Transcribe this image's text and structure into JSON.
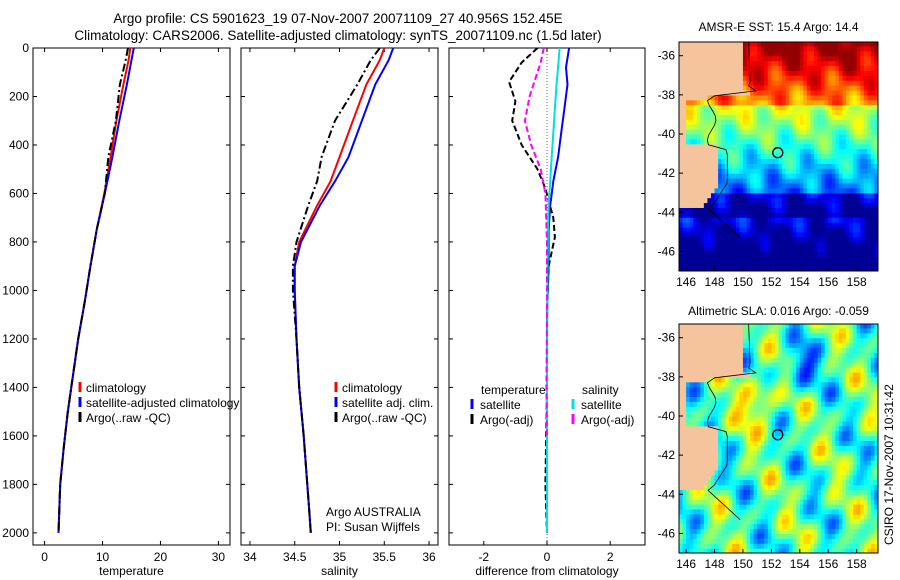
{
  "header": {
    "line1": "Argo profile: CS 5901623_19 07-Nov-2007 20071109_27 40.956S 152.45E",
    "line2": "Climatology: CARS2006. Satellite-adjusted climatology: synTS_20071109.nc (1.5d later)"
  },
  "stamp": "CSIRO 17-Nov-2007 10:31:42",
  "colors": {
    "red": "#ff0000",
    "blue": "#0000ff",
    "black": "#000000",
    "cyan": "#00e0e0",
    "magenta": "#ff00ff",
    "land": "#f6c49c"
  },
  "chart_data": [
    {
      "type": "line",
      "xlabel": "temperature",
      "ylabel": "",
      "xlim": [
        -2,
        32
      ],
      "ylim": [
        2050,
        0
      ],
      "xticks": [
        0,
        10,
        20,
        30
      ],
      "yticks": [
        0,
        200,
        400,
        600,
        800,
        1000,
        1200,
        1400,
        1600,
        1800,
        2000
      ],
      "legend": {
        "position": "lower-right",
        "entries": [
          "climatology",
          "satellite-adjusted climatology",
          "Argo(..raw -QC)"
        ]
      },
      "series": [
        {
          "name": "climatology",
          "color": "#ff0000",
          "dash": "solid",
          "x": [
            14.8,
            14.5,
            13.6,
            12.4,
            11.4,
            10.3,
            9.0,
            7.9,
            6.9,
            5.8,
            4.9,
            4.0,
            3.3,
            2.7,
            2.4
          ],
          "y": [
            0,
            50,
            150,
            300,
            450,
            600,
            750,
            900,
            1050,
            1200,
            1350,
            1500,
            1650,
            1800,
            2000
          ]
        },
        {
          "name": "satellite-adjusted climatology",
          "color": "#0000ff",
          "dash": "solid",
          "x": [
            15.4,
            15.0,
            14.2,
            12.9,
            11.7,
            10.4,
            9.0,
            7.9,
            6.9,
            5.8,
            4.9,
            4.0,
            3.3,
            2.7,
            2.4
          ],
          "y": [
            0,
            50,
            150,
            300,
            450,
            600,
            750,
            900,
            1050,
            1200,
            1350,
            1500,
            1650,
            1800,
            2000
          ]
        },
        {
          "name": "Argo(..raw -QC)",
          "color": "#000000",
          "dash": "dashdot",
          "x": [
            14.4,
            14.0,
            13.0,
            12.3,
            11.0,
            10.4,
            9.0,
            7.9,
            6.9,
            5.8,
            4.9,
            4.0,
            3.3,
            2.7,
            2.4
          ],
          "y": [
            0,
            50,
            150,
            300,
            450,
            600,
            750,
            900,
            1050,
            1200,
            1350,
            1500,
            1650,
            1800,
            2000
          ]
        }
      ]
    },
    {
      "type": "line",
      "xlabel": "salinity",
      "ylabel": "",
      "xlim": [
        33.9,
        36.1
      ],
      "ylim": [
        2050,
        0
      ],
      "xticks": [
        34,
        34.5,
        35,
        35.5,
        36
      ],
      "legend": {
        "position": "lower-right",
        "entries": [
          "climatology",
          "satellite adj. clim.",
          "Argo(..raw -QC)"
        ]
      },
      "annotation": [
        "Argo AUSTRALIA",
        "PI: Susan Wijffels"
      ],
      "series": [
        {
          "name": "climatology",
          "color": "#ff0000",
          "dash": "solid",
          "x": [
            35.5,
            35.45,
            35.3,
            35.15,
            35.0,
            34.9,
            34.75,
            34.55,
            34.5,
            34.5,
            34.52,
            34.55,
            34.6,
            34.64,
            34.66,
            34.68
          ],
          "y": [
            0,
            50,
            150,
            300,
            450,
            550,
            650,
            800,
            900,
            1000,
            1200,
            1400,
            1600,
            1800,
            1900,
            2000
          ]
        },
        {
          "name": "satellite adj. clim.",
          "color": "#0000ff",
          "dash": "solid",
          "x": [
            35.6,
            35.55,
            35.4,
            35.25,
            35.1,
            34.95,
            34.78,
            34.57,
            34.5,
            34.5,
            34.52,
            34.55,
            34.6,
            34.64,
            34.66,
            34.68
          ],
          "y": [
            0,
            50,
            150,
            300,
            450,
            550,
            650,
            800,
            900,
            1000,
            1200,
            1400,
            1600,
            1800,
            1900,
            2000
          ]
        },
        {
          "name": "Argo(..raw -QC)",
          "color": "#000000",
          "dash": "dashdot",
          "x": [
            35.45,
            35.35,
            35.2,
            34.95,
            34.8,
            34.75,
            34.65,
            34.52,
            34.48,
            34.48,
            34.52,
            34.55,
            34.6,
            34.64,
            34.66,
            34.68
          ],
          "y": [
            0,
            50,
            150,
            300,
            450,
            550,
            650,
            800,
            900,
            1000,
            1200,
            1400,
            1600,
            1800,
            1900,
            2000
          ]
        }
      ]
    },
    {
      "type": "line",
      "xlabel": "difference from climatology",
      "ylabel": "",
      "xlim": [
        -3.1,
        3.1
      ],
      "ylim": [
        2050,
        0
      ],
      "xticks": [
        -2,
        0,
        2
      ],
      "legend": {
        "position": "lower-center",
        "entries": [
          "temperature",
          "satellite",
          "Argo(-adj)",
          "salinity",
          "satellite",
          "Argo(-adj)"
        ]
      },
      "series": [
        {
          "name": "temperature satellite",
          "color": "#0000ff",
          "dash": "solid",
          "x": [
            0.7,
            0.6,
            0.65,
            0.55,
            0.45,
            0.35,
            0.2,
            0.1,
            0.05,
            0.05,
            0.0,
            0.0,
            0.0,
            0.0,
            0.0
          ],
          "y": [
            0,
            80,
            150,
            250,
            350,
            450,
            550,
            650,
            750,
            900,
            1100,
            1400,
            1700,
            1900,
            2000
          ]
        },
        {
          "name": "temperature Argo(-adj)",
          "color": "#000000",
          "dash": "dash",
          "x": [
            -0.3,
            -0.8,
            -1.2,
            -1.0,
            -1.1,
            -0.8,
            -0.3,
            -0.05,
            0.2,
            0.25,
            0.05,
            0.0,
            0.0,
            -0.05,
            0.0
          ],
          "y": [
            0,
            60,
            140,
            220,
            300,
            400,
            500,
            580,
            700,
            780,
            900,
            1100,
            1400,
            1800,
            2000
          ]
        },
        {
          "name": "salinity satellite",
          "color": "#00e0e0",
          "dash": "solid",
          "x": [
            0.4,
            0.35,
            0.3,
            0.25,
            0.2,
            0.15,
            0.1,
            0.05,
            0.03,
            0.02,
            0.01,
            0.0,
            0.0,
            0.0
          ],
          "y": [
            0,
            80,
            150,
            250,
            350,
            450,
            550,
            650,
            750,
            900,
            1100,
            1400,
            1700,
            2000
          ]
        },
        {
          "name": "salinity Argo(-adj)",
          "color": "#ff00ff",
          "dash": "dash",
          "x": [
            -0.1,
            -0.2,
            -0.35,
            -0.55,
            -0.7,
            -0.5,
            -0.2,
            -0.05,
            0.0,
            0.0,
            -0.02,
            0.0
          ],
          "y": [
            0,
            60,
            120,
            200,
            300,
            400,
            500,
            600,
            800,
            1100,
            1400,
            1600
          ]
        }
      ]
    },
    {
      "type": "heatmap",
      "title": "AMSR-E SST: 15.4 Argo: 14.4",
      "xlim": [
        145.5,
        159.5
      ],
      "ylim": [
        -47,
        -35.3
      ],
      "xticks": [
        146,
        148,
        150,
        152,
        154,
        156,
        158
      ],
      "yticks": [
        -36,
        -38,
        -40,
        -42,
        -44,
        -46
      ],
      "argo_position": {
        "lon": 152.45,
        "lat": -40.956
      }
    },
    {
      "type": "heatmap",
      "title": "Altimetric SLA: 0.016 Argo: -0.059",
      "xlim": [
        145.5,
        159.5
      ],
      "ylim": [
        -47,
        -35.3
      ],
      "xticks": [
        146,
        148,
        150,
        152,
        154,
        156,
        158
      ],
      "yticks": [
        -36,
        -38,
        -40,
        -42,
        -44,
        -46
      ],
      "argo_position": {
        "lon": 152.45,
        "lat": -40.956
      }
    }
  ]
}
